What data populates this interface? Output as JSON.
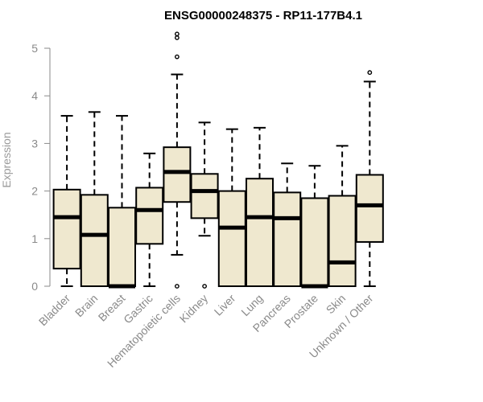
{
  "chart_data": {
    "type": "boxplot",
    "title": "ENSG00000248375 - RP11-177B4.1",
    "ylabel": "Expression",
    "xlabel": "",
    "ylim": [
      0,
      5.25
    ],
    "yticks": [
      "0",
      "1",
      "2",
      "3",
      "4",
      "5"
    ],
    "grid": false,
    "box_fill": "#efe8cf",
    "box_stroke": "#000000",
    "categories": [
      "Bladder",
      "Brain",
      "Breast",
      "Gastric",
      "Hematopoietic cells",
      "Kidney",
      "Liver",
      "Lung",
      "Pancreas",
      "Prostate",
      "Skin",
      "Unknown / Other"
    ],
    "boxes": [
      {
        "category": "Bladder",
        "whisker_low": 0,
        "q1": 0.37,
        "median": 1.45,
        "q3": 2.03,
        "whisker_high": 3.58,
        "outliers": []
      },
      {
        "category": "Brain",
        "whisker_low": 0,
        "q1": 0,
        "median": 1.08,
        "q3": 1.92,
        "whisker_high": 3.66,
        "outliers": []
      },
      {
        "category": "Breast",
        "whisker_low": 0,
        "q1": 0,
        "median": 0,
        "q3": 1.65,
        "whisker_high": 3.58,
        "outliers": []
      },
      {
        "category": "Gastric",
        "whisker_low": 0,
        "q1": 0.89,
        "median": 1.6,
        "q3": 2.07,
        "whisker_high": 2.79,
        "outliers": []
      },
      {
        "category": "Hematopoietic cells",
        "whisker_low": 0.66,
        "q1": 1.77,
        "median": 2.4,
        "q3": 2.92,
        "whisker_high": 4.45,
        "outliers": [
          0,
          4.82,
          5.22,
          5.3
        ]
      },
      {
        "category": "Kidney",
        "whisker_low": 1.06,
        "q1": 1.43,
        "median": 2.0,
        "q3": 2.36,
        "whisker_high": 3.44,
        "outliers": [
          0
        ]
      },
      {
        "category": "Liver",
        "whisker_low": 0,
        "q1": 0,
        "median": 1.23,
        "q3": 2.0,
        "whisker_high": 3.3,
        "outliers": []
      },
      {
        "category": "Lung",
        "whisker_low": 0,
        "q1": 0,
        "median": 1.45,
        "q3": 2.26,
        "whisker_high": 3.33,
        "outliers": []
      },
      {
        "category": "Pancreas",
        "whisker_low": 0,
        "q1": 0,
        "median": 1.43,
        "q3": 1.97,
        "whisker_high": 2.58,
        "outliers": []
      },
      {
        "category": "Prostate",
        "whisker_low": 0,
        "q1": 0,
        "median": 0,
        "q3": 1.85,
        "whisker_high": 2.53,
        "outliers": []
      },
      {
        "category": "Skin",
        "whisker_low": 0,
        "q1": 0,
        "median": 0.5,
        "q3": 1.9,
        "whisker_high": 2.95,
        "outliers": []
      },
      {
        "category": "Unknown / Other",
        "whisker_low": 0,
        "q1": 0.93,
        "median": 1.7,
        "q3": 2.34,
        "whisker_high": 4.3,
        "outliers": [
          4.49
        ]
      }
    ]
  }
}
